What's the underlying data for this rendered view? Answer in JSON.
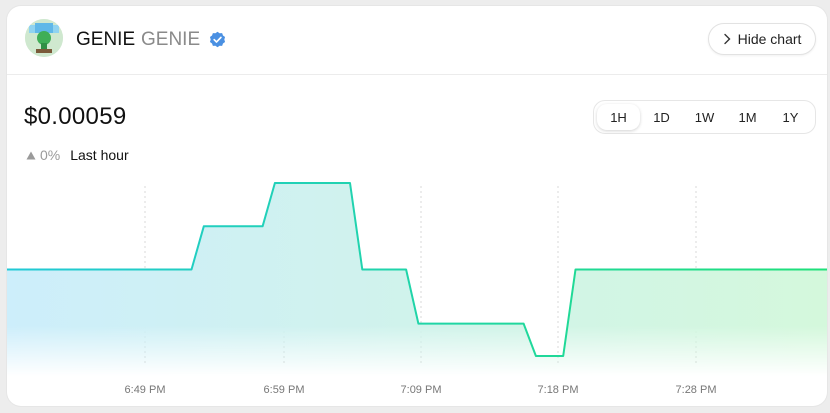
{
  "token": {
    "name": "GENIE",
    "symbol": "GENIE",
    "verified_icon": "verified-badge-icon",
    "avatar_icon": "token-avatar-icon"
  },
  "header": {
    "hide_chart_label": "Hide chart"
  },
  "price": {
    "value": "$0.00059",
    "change_percent": "0%",
    "change_direction": "up",
    "period_label": "Last hour"
  },
  "timeframes": {
    "options": [
      "1H",
      "1D",
      "1W",
      "1M",
      "1Y"
    ],
    "selected": "1H"
  },
  "colors": {
    "line_start": "#22c9d6",
    "line_end": "#1fe07a",
    "accent": "#4a90e2"
  },
  "chart_data": {
    "type": "line",
    "x_ticks": [
      "6:49 PM",
      "6:59 PM",
      "7:09 PM",
      "7:18 PM",
      "7:28 PM"
    ],
    "series": [
      {
        "values": [
          {
            "t": 0,
            "v": 0.58
          },
          {
            "t": 13.5,
            "v": 0.58
          },
          {
            "t": 14.4,
            "v": 0.6
          },
          {
            "t": 18.7,
            "v": 0.6
          },
          {
            "t": 19.6,
            "v": 0.62
          },
          {
            "t": 25.1,
            "v": 0.62
          },
          {
            "t": 26,
            "v": 0.58
          },
          {
            "t": 29.2,
            "v": 0.58
          },
          {
            "t": 30.1,
            "v": 0.555
          },
          {
            "t": 37.8,
            "v": 0.555
          },
          {
            "t": 38.7,
            "v": 0.54
          },
          {
            "t": 40.7,
            "v": 0.54
          },
          {
            "t": 41.6,
            "v": 0.58
          },
          {
            "t": 60,
            "v": 0.58
          }
        ]
      }
    ],
    "grid": true
  }
}
